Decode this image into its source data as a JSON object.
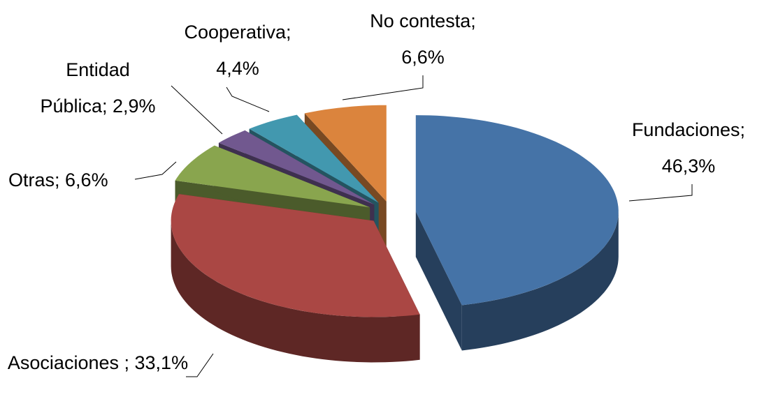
{
  "chart_data": {
    "type": "pie3d",
    "categories": [
      "Fundaciones;",
      "Asociaciones ;",
      "Otras;",
      "Entidad Pública;",
      "Cooperativa;",
      "No contesta;"
    ],
    "values": [
      46.3,
      33.1,
      6.6,
      2.9,
      4.4,
      6.6
    ],
    "value_labels": [
      "46,3%",
      "33,1%",
      "6,6%",
      "2,9%",
      "4,4%",
      "6,6%"
    ],
    "colors": [
      "#4573a7",
      "#aa4744",
      "#89a54e",
      "#71588f",
      "#4298af",
      "#db843d"
    ]
  }
}
